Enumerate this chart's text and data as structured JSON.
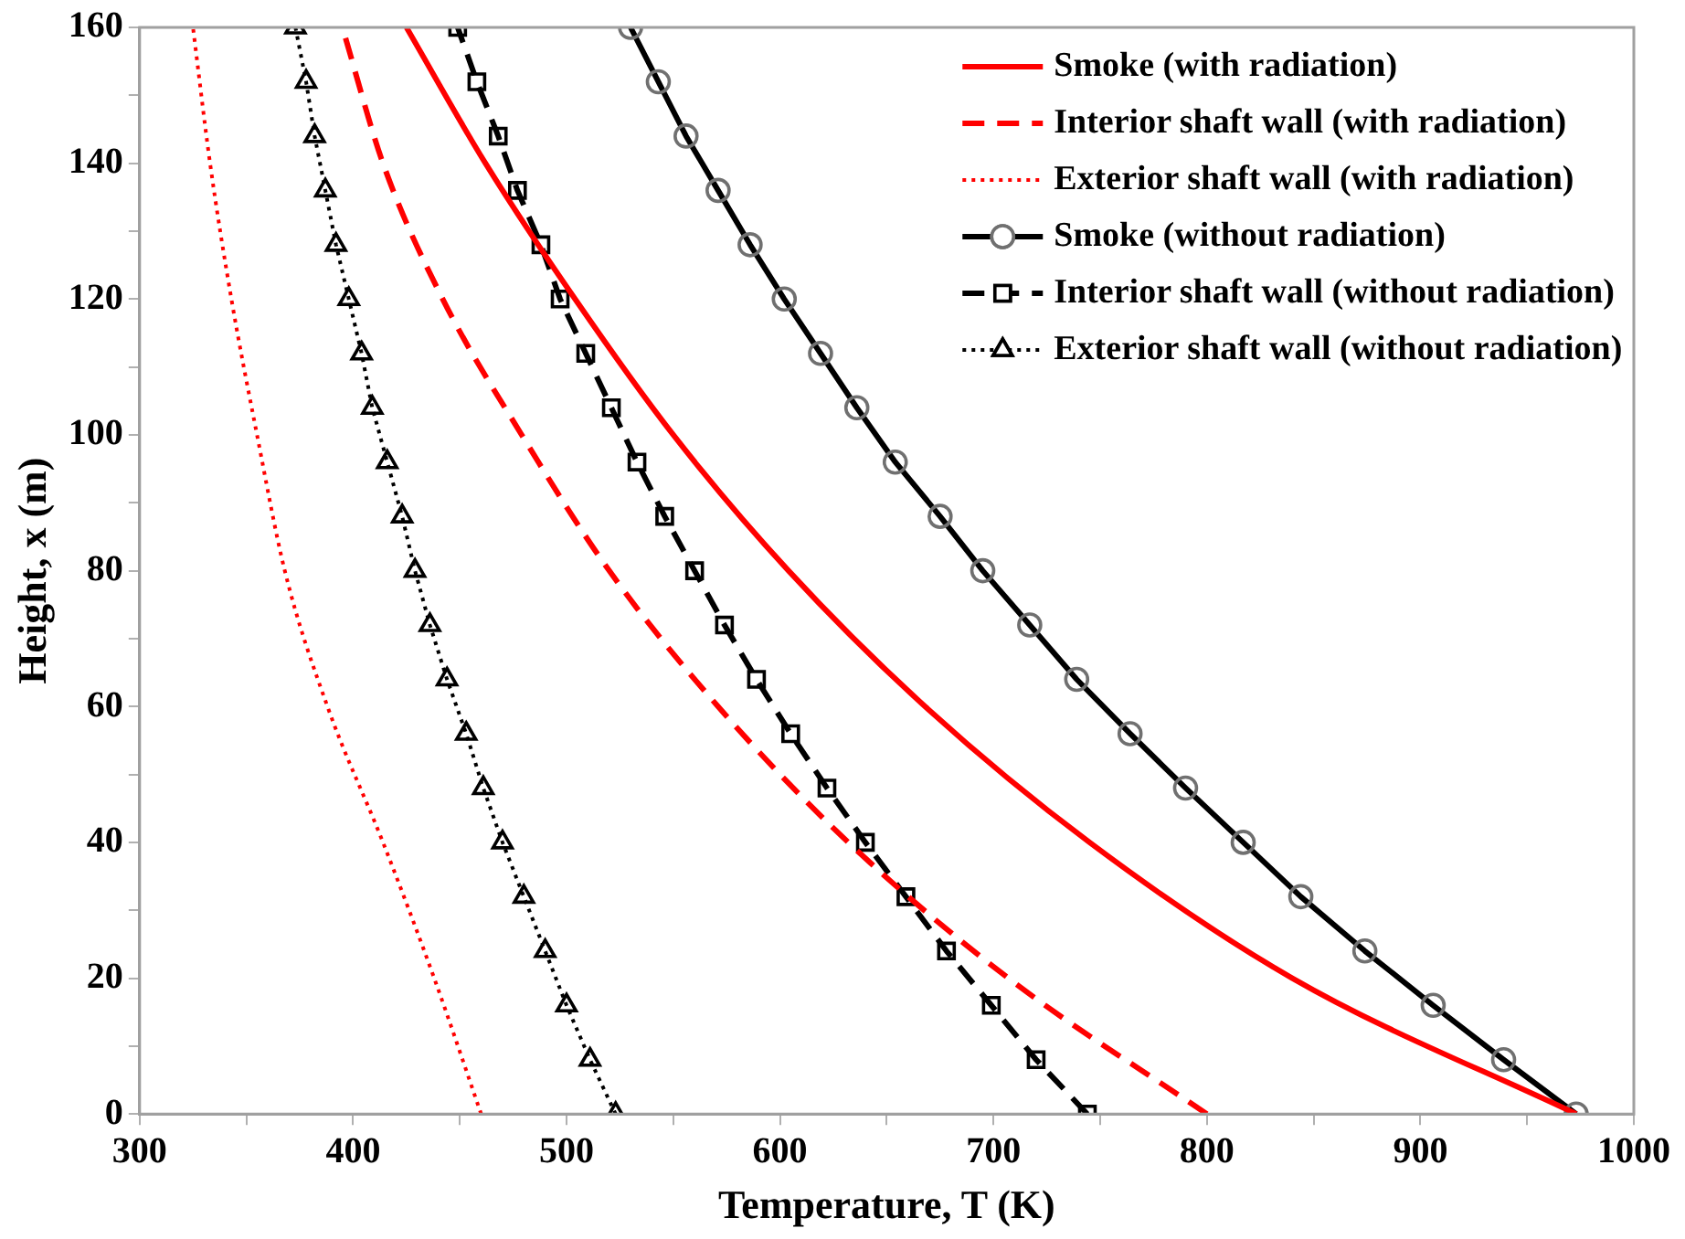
{
  "chart_data": {
    "type": "line",
    "xlabel": "Temperature, T (K)",
    "ylabel": "Height, x (m)",
    "xlim": [
      300,
      1000
    ],
    "ylim": [
      0,
      160
    ],
    "xticks": [
      300,
      {
        "value": 350,
        "label": null
      },
      400,
      {
        "value": 450,
        "label": null
      },
      500,
      {
        "value": 550,
        "label": null
      },
      600,
      {
        "value": 650,
        "label": null
      },
      700,
      {
        "value": 750,
        "label": null
      },
      800,
      {
        "value": 850,
        "label": null
      },
      900,
      {
        "value": 950,
        "label": null
      },
      1000
    ],
    "yticks": [
      0,
      {
        "value": 10,
        "label": null
      },
      20,
      {
        "value": 30,
        "label": null
      },
      40,
      {
        "value": 50,
        "label": null
      },
      60,
      {
        "value": 70,
        "label": null
      },
      80,
      {
        "value": 90,
        "label": null
      },
      100,
      {
        "value": 110,
        "label": null
      },
      120,
      {
        "value": 130,
        "label": null
      },
      140,
      {
        "value": 150,
        "label": null
      },
      160
    ],
    "grid": false,
    "legend": "top right",
    "series": [
      {
        "name": "Smoke (with radiation)",
        "color": "#ff0000",
        "line_style": "solid",
        "marker": "none",
        "x": [
          973,
          840,
          745,
          668,
          604,
          550,
          504,
          462,
          425
        ],
        "values": [
          0,
          20,
          40,
          60,
          80,
          100,
          120,
          140,
          160
        ]
      },
      {
        "name": "Interior shaft wall (with radiation)",
        "color": "#ff0000",
        "line_style": "dashed",
        "marker": "none",
        "x": [
          800,
          707,
          632,
          571,
          520,
          479,
          442,
          414,
          395
        ],
        "values": [
          0,
          20,
          40,
          60,
          80,
          100,
          120,
          140,
          160
        ]
      },
      {
        "name": "Exterior shaft wall (with radiation)",
        "color": "#ff0000",
        "line_style": "dotted",
        "marker": "none",
        "x": [
          460,
          438,
          414,
          388,
          368,
          355,
          343,
          333,
          325
        ],
        "values": [
          0,
          20,
          40,
          60,
          80,
          100,
          120,
          140,
          160
        ]
      },
      {
        "name": "Smoke (without radiation)",
        "color": "#000000",
        "line_style": "solid",
        "marker": "circle",
        "x": [
          973,
          939,
          906,
          874,
          844,
          817,
          790,
          764,
          739,
          717,
          695,
          675,
          654,
          636,
          619,
          602,
          586,
          571,
          556,
          543,
          530
        ],
        "values": [
          0,
          8,
          16,
          24,
          32,
          40,
          48,
          56,
          64,
          72,
          80,
          88,
          96,
          104,
          112,
          120,
          128,
          136,
          144,
          152,
          160
        ]
      },
      {
        "name": "Interior shaft wall (without radiation)",
        "color": "#000000",
        "line_style": "dashed",
        "marker": "square",
        "x": [
          744,
          720,
          699,
          678,
          659,
          640,
          622,
          605,
          589,
          574,
          560,
          546,
          533,
          521,
          509,
          497,
          488,
          477,
          468,
          458,
          449
        ],
        "values": [
          0,
          8,
          16,
          24,
          32,
          40,
          48,
          56,
          64,
          72,
          80,
          88,
          96,
          104,
          112,
          120,
          128,
          136,
          144,
          152,
          160
        ]
      },
      {
        "name": "Exterior shaft wall (without radiation)",
        "color": "#000000",
        "line_style": "dotted",
        "marker": "triangle",
        "x": [
          523,
          511,
          500,
          490,
          480,
          470,
          461,
          453,
          444,
          436,
          429,
          423,
          416,
          409,
          404,
          398,
          392,
          387,
          382,
          378,
          373
        ],
        "values": [
          0,
          8,
          16,
          24,
          32,
          40,
          48,
          56,
          64,
          72,
          80,
          88,
          96,
          104,
          112,
          120,
          128,
          136,
          144,
          152,
          160
        ]
      }
    ]
  }
}
